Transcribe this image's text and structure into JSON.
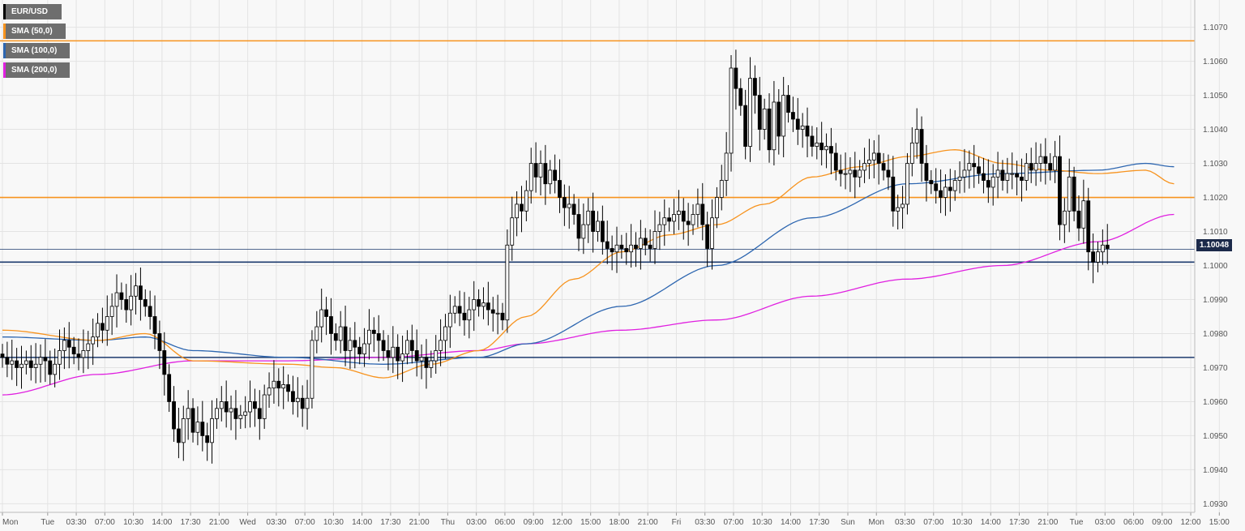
{
  "chart_data": {
    "type": "candlestick",
    "symbol": "EUR/USD",
    "legend": [
      {
        "label": "EUR/USD",
        "color": "#000000"
      },
      {
        "label": "SMA (50,0)",
        "color": "#f7931e"
      },
      {
        "label": "SMA (100,0)",
        "color": "#2d66b0"
      },
      {
        "label": "SMA (200,0)",
        "color": "#e020e0"
      }
    ],
    "colors": {
      "sma50": "#f7931e",
      "sma100": "#2d66b0",
      "sma200": "#e020e0",
      "resistance": "#f7931e",
      "support": "#1c3a6e",
      "price_line": "#1c3a6e",
      "up_candle": "#ffffff",
      "down_candle": "#000000"
    },
    "ylim": [
      1.0922,
      1.1078
    ],
    "y_ticks": [
      "1.1070",
      "1.1060",
      "1.1050",
      "1.1040",
      "1.1030",
      "1.1020",
      "1.1010",
      "1.1000",
      "1.0990",
      "1.0980",
      "1.0970",
      "1.0960",
      "1.0950",
      "1.0940",
      "1.0930"
    ],
    "y_tick_values": [
      1.107,
      1.106,
      1.105,
      1.104,
      1.103,
      1.102,
      1.101,
      1.1,
      1.099,
      1.098,
      1.097,
      1.096,
      1.095,
      1.094,
      1.093
    ],
    "x_ticks": [
      "Mon",
      "Tue",
      "03:30",
      "07:00",
      "10:30",
      "14:00",
      "17:30",
      "21:00",
      "Wed",
      "03:30",
      "07:00",
      "10:30",
      "14:00",
      "17:30",
      "21:00",
      "Thu",
      "03:00",
      "06:00",
      "09:00",
      "12:00",
      "15:00",
      "18:00",
      "21:00",
      "Fri",
      "03:30",
      "07:00",
      "10:30",
      "14:00",
      "17:30",
      "Sun",
      "Mon",
      "03:30",
      "07:00",
      "10:30",
      "14:00",
      "17:30",
      "21:00",
      "Tue",
      "03:00",
      "06:00",
      "09:00",
      "12:00",
      "15:00"
    ],
    "x_tick_index": [
      0,
      9.5,
      15.5,
      21.5,
      27.5,
      33.5,
      39.5,
      45.5,
      51.5,
      57.5,
      63.5,
      69.5,
      75.5,
      81.5,
      87.5,
      93.5,
      99.5,
      105.5,
      111.5,
      117.5,
      123.5,
      129.5,
      135.5,
      141.5,
      147.5,
      153.5,
      159.5,
      165.5,
      171.5,
      177.5,
      183.5,
      189.5,
      195.5,
      201.5,
      207.5,
      213.5,
      219.5,
      225.5,
      231.5,
      237.5,
      243.5,
      249.5,
      255.5
    ],
    "last_price": "1.10048",
    "horizontal_levels": [
      {
        "value": 1.1066,
        "kind": "resistance"
      },
      {
        "value": 1.102,
        "kind": "resistance"
      },
      {
        "value": 1.1001,
        "kind": "support"
      },
      {
        "value": 1.0973,
        "kind": "support"
      }
    ],
    "close": [
      1.0973,
      1.0971,
      1.0972,
      1.097,
      1.0971,
      1.0972,
      1.097,
      1.0971,
      1.0973,
      1.0972,
      1.0968,
      1.0971,
      1.0975,
      1.0978,
      1.0976,
      1.0974,
      1.0973,
      1.0975,
      1.0977,
      1.0979,
      1.0983,
      1.0981,
      1.0985,
      1.0988,
      1.0992,
      1.099,
      1.0987,
      1.0991,
      1.0994,
      1.099,
      1.0988,
      1.0985,
      1.098,
      1.0975,
      1.0968,
      1.096,
      1.0952,
      1.0948,
      1.0955,
      1.0958,
      1.0951,
      1.0954,
      1.095,
      1.0948,
      1.0955,
      1.0958,
      1.096,
      1.0957,
      1.0958,
      1.0955,
      1.0956,
      1.0957,
      1.096,
      1.0958,
      1.0955,
      1.0962,
      1.0964,
      1.0966,
      1.0964,
      1.0965,
      1.0963,
      1.096,
      1.0961,
      1.0958,
      1.0961,
      1.0978,
      1.0982,
      1.0987,
      1.0985,
      1.098,
      1.0978,
      1.0982,
      1.0975,
      1.0978,
      1.0976,
      1.0974,
      1.0977,
      1.0981,
      1.098,
      1.0978,
      1.0975,
      1.0973,
      1.0976,
      1.0972,
      1.0974,
      1.0978,
      1.0975,
      1.0972,
      1.0973,
      1.097,
      1.0972,
      1.0975,
      1.0978,
      1.0982,
      1.0986,
      1.0988,
      1.0986,
      1.0984,
      1.0987,
      1.099,
      1.0988,
      1.0989,
      1.0987,
      1.0986,
      1.0986,
      1.0984,
      1.1006,
      1.1014,
      1.1018,
      1.1016,
      1.1022,
      1.103,
      1.1026,
      1.103,
      1.1024,
      1.1028,
      1.1025,
      1.102,
      1.1017,
      1.1018,
      1.1015,
      1.1008,
      1.1012,
      1.1016,
      1.101,
      1.1013,
      1.1007,
      1.1005,
      1.1004,
      1.1006,
      1.1005,
      1.1004,
      1.1006,
      1.1005,
      1.1008,
      1.1006,
      1.1005,
      1.101,
      1.1012,
      1.1014,
      1.1013,
      1.1015,
      1.1016,
      1.1013,
      1.1012,
      1.1015,
      1.1018,
      1.1012,
      1.1005,
      1.1014,
      1.102,
      1.1025,
      1.1033,
      1.1058,
      1.1052,
      1.1047,
      1.1035,
      1.1055,
      1.105,
      1.104,
      1.1046,
      1.1034,
      1.1048,
      1.1038,
      1.105,
      1.1045,
      1.1043,
      1.104,
      1.1041,
      1.1038,
      1.1035,
      1.1036,
      1.1034,
      1.1035,
      1.1033,
      1.1028,
      1.1027,
      1.1027,
      1.1028,
      1.1026,
      1.1028,
      1.103,
      1.1031,
      1.1033,
      1.103,
      1.1028,
      1.1026,
      1.1016,
      1.1017,
      1.1018,
      1.103,
      1.1036,
      1.104,
      1.103,
      1.1025,
      1.1024,
      1.1022,
      1.102,
      1.1023,
      1.1022,
      1.1025,
      1.1026,
      1.1028,
      1.103,
      1.1029,
      1.1027,
      1.1025,
      1.1023,
      1.1026,
      1.1028,
      1.1025,
      1.1027,
      1.1027,
      1.1026,
      1.1025,
      1.103,
      1.1028,
      1.103,
      1.1032,
      1.103,
      1.1028,
      1.1032,
      1.1012,
      1.1016,
      1.1026,
      1.1016,
      1.1011,
      1.1019,
      1.1004,
      1.1001,
      1.1004,
      1.1006,
      1.1005
    ],
    "open": [
      1.0974,
      1.0973,
      1.0971,
      1.0972,
      1.097,
      1.0971,
      1.0972,
      1.097,
      1.0971,
      1.0973,
      1.0972,
      1.0968,
      1.0971,
      1.0975,
      1.0978,
      1.0976,
      1.0974,
      1.0973,
      1.0975,
      1.0977,
      1.0979,
      1.0983,
      1.0981,
      1.0985,
      1.0988,
      1.0992,
      1.099,
      1.0987,
      1.0991,
      1.0994,
      1.099,
      1.0988,
      1.0985,
      1.098,
      1.0975,
      1.0968,
      1.096,
      1.0952,
      1.0948,
      1.0955,
      1.0958,
      1.0951,
      1.0954,
      1.095,
      1.0948,
      1.0955,
      1.0958,
      1.096,
      1.0957,
      1.0958,
      1.0955,
      1.0956,
      1.0957,
      1.096,
      1.0958,
      1.0955,
      1.0962,
      1.0964,
      1.0966,
      1.0964,
      1.0965,
      1.0963,
      1.096,
      1.0961,
      1.0958,
      1.0961,
      1.0978,
      1.0982,
      1.0987,
      1.0985,
      1.098,
      1.0978,
      1.0982,
      1.0975,
      1.0978,
      1.0976,
      1.0974,
      1.0977,
      1.0981,
      1.098,
      1.0978,
      1.0975,
      1.0973,
      1.0976,
      1.0972,
      1.0974,
      1.0978,
      1.0975,
      1.0972,
      1.0973,
      1.097,
      1.0972,
      1.0975,
      1.0978,
      1.0982,
      1.0986,
      1.0988,
      1.0986,
      1.0984,
      1.0987,
      1.099,
      1.0988,
      1.0989,
      1.0987,
      1.0986,
      1.0986,
      1.0984,
      1.1006,
      1.1014,
      1.1018,
      1.1016,
      1.1022,
      1.103,
      1.1026,
      1.103,
      1.1024,
      1.1028,
      1.1025,
      1.102,
      1.1017,
      1.1018,
      1.1015,
      1.1008,
      1.1012,
      1.1016,
      1.101,
      1.1013,
      1.1007,
      1.1005,
      1.1004,
      1.1006,
      1.1005,
      1.1004,
      1.1006,
      1.1005,
      1.1008,
      1.1006,
      1.1005,
      1.101,
      1.1012,
      1.1014,
      1.1013,
      1.1015,
      1.1016,
      1.1013,
      1.1012,
      1.1015,
      1.1018,
      1.1012,
      1.1005,
      1.1014,
      1.102,
      1.1025,
      1.1033,
      1.1058,
      1.1052,
      1.1047,
      1.1035,
      1.1055,
      1.105,
      1.104,
      1.1046,
      1.1034,
      1.1048,
      1.1038,
      1.105,
      1.1045,
      1.1043,
      1.104,
      1.1041,
      1.1038,
      1.1035,
      1.1036,
      1.1034,
      1.1035,
      1.1033,
      1.1028,
      1.1027,
      1.1027,
      1.1028,
      1.1026,
      1.1028,
      1.103,
      1.1031,
      1.1033,
      1.103,
      1.1028,
      1.1026,
      1.1016,
      1.1017,
      1.1018,
      1.103,
      1.1036,
      1.104,
      1.103,
      1.1025,
      1.1024,
      1.1022,
      1.102,
      1.1023,
      1.1022,
      1.1025,
      1.1026,
      1.1028,
      1.103,
      1.1029,
      1.1027,
      1.1025,
      1.1023,
      1.1026,
      1.1028,
      1.1025,
      1.1027,
      1.1027,
      1.1026,
      1.1025,
      1.103,
      1.1028,
      1.103,
      1.1032,
      1.103,
      1.1028,
      1.1032,
      1.1012,
      1.1016,
      1.1026,
      1.1016,
      1.1011,
      1.1019,
      1.1004,
      1.1001,
      1.1004,
      1.1006
    ],
    "sma50_anchors": [
      [
        0,
        1.0981
      ],
      [
        20,
        1.0978
      ],
      [
        30,
        1.098
      ],
      [
        40,
        1.0972
      ],
      [
        60,
        1.0971
      ],
      [
        70,
        1.097
      ],
      [
        80,
        1.0967
      ],
      [
        90,
        1.0971
      ],
      [
        100,
        1.0975
      ],
      [
        110,
        1.0985
      ],
      [
        120,
        1.0996
      ],
      [
        130,
        1.1004
      ],
      [
        140,
        1.1009
      ],
      [
        150,
        1.1012
      ],
      [
        160,
        1.1018
      ],
      [
        170,
        1.1026
      ],
      [
        180,
        1.1029
      ],
      [
        190,
        1.1032
      ],
      [
        200,
        1.1034
      ],
      [
        210,
        1.103
      ],
      [
        220,
        1.1028
      ],
      [
        230,
        1.1027
      ],
      [
        240,
        1.1028
      ],
      [
        246,
        1.1024
      ]
    ],
    "sma100_anchors": [
      [
        0,
        1.0979
      ],
      [
        20,
        1.0978
      ],
      [
        30,
        1.0979
      ],
      [
        40,
        1.0975
      ],
      [
        60,
        1.0973
      ],
      [
        80,
        1.0971
      ],
      [
        100,
        1.0973
      ],
      [
        110,
        1.0977
      ],
      [
        130,
        1.0988
      ],
      [
        150,
        1.1
      ],
      [
        170,
        1.1014
      ],
      [
        190,
        1.1024
      ],
      [
        210,
        1.1027
      ],
      [
        230,
        1.1028
      ],
      [
        240,
        1.103
      ],
      [
        246,
        1.1029
      ]
    ],
    "sma200_anchors": [
      [
        0,
        1.0962
      ],
      [
        20,
        1.0968
      ],
      [
        40,
        1.0972
      ],
      [
        60,
        1.0972
      ],
      [
        80,
        1.0973
      ],
      [
        100,
        1.0975
      ],
      [
        110,
        1.0977
      ],
      [
        130,
        1.0981
      ],
      [
        150,
        1.0984
      ],
      [
        170,
        1.0991
      ],
      [
        190,
        1.0996
      ],
      [
        210,
        1.1
      ],
      [
        230,
        1.1007
      ],
      [
        246,
        1.1015
      ]
    ]
  }
}
